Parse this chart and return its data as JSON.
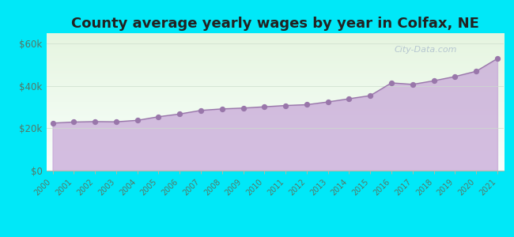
{
  "title": "County average yearly wages by year in Colfax, NE",
  "years": [
    2000,
    2001,
    2002,
    2003,
    2004,
    2005,
    2006,
    2007,
    2008,
    2009,
    2010,
    2011,
    2012,
    2013,
    2014,
    2015,
    2016,
    2017,
    2018,
    2019,
    2020,
    2021
  ],
  "wages": [
    22500,
    23000,
    23200,
    23100,
    23800,
    25500,
    26800,
    28500,
    29200,
    29600,
    30200,
    30800,
    31200,
    32500,
    34000,
    35500,
    41500,
    40800,
    42500,
    44500,
    47000,
    53000
  ],
  "ylim": [
    0,
    65000
  ],
  "yticks": [
    0,
    20000,
    40000,
    60000
  ],
  "ytick_labels": [
    "$0",
    "$20k",
    "$40k",
    "$60k"
  ],
  "bg_outer_color": "#00e8f8",
  "bg_inner_top_color": "#e6f5e0",
  "bg_inner_bottom_color": "#f8fffc",
  "area_fill_color": "#c8a8d8",
  "area_fill_alpha": 0.75,
  "line_color": "#9977aa",
  "marker_color": "#9977aa",
  "marker_size": 18,
  "title_fontsize": 13,
  "tick_label_color": "#557766",
  "watermark_text": "City-Data.com",
  "watermark_color": "#aabbcc"
}
